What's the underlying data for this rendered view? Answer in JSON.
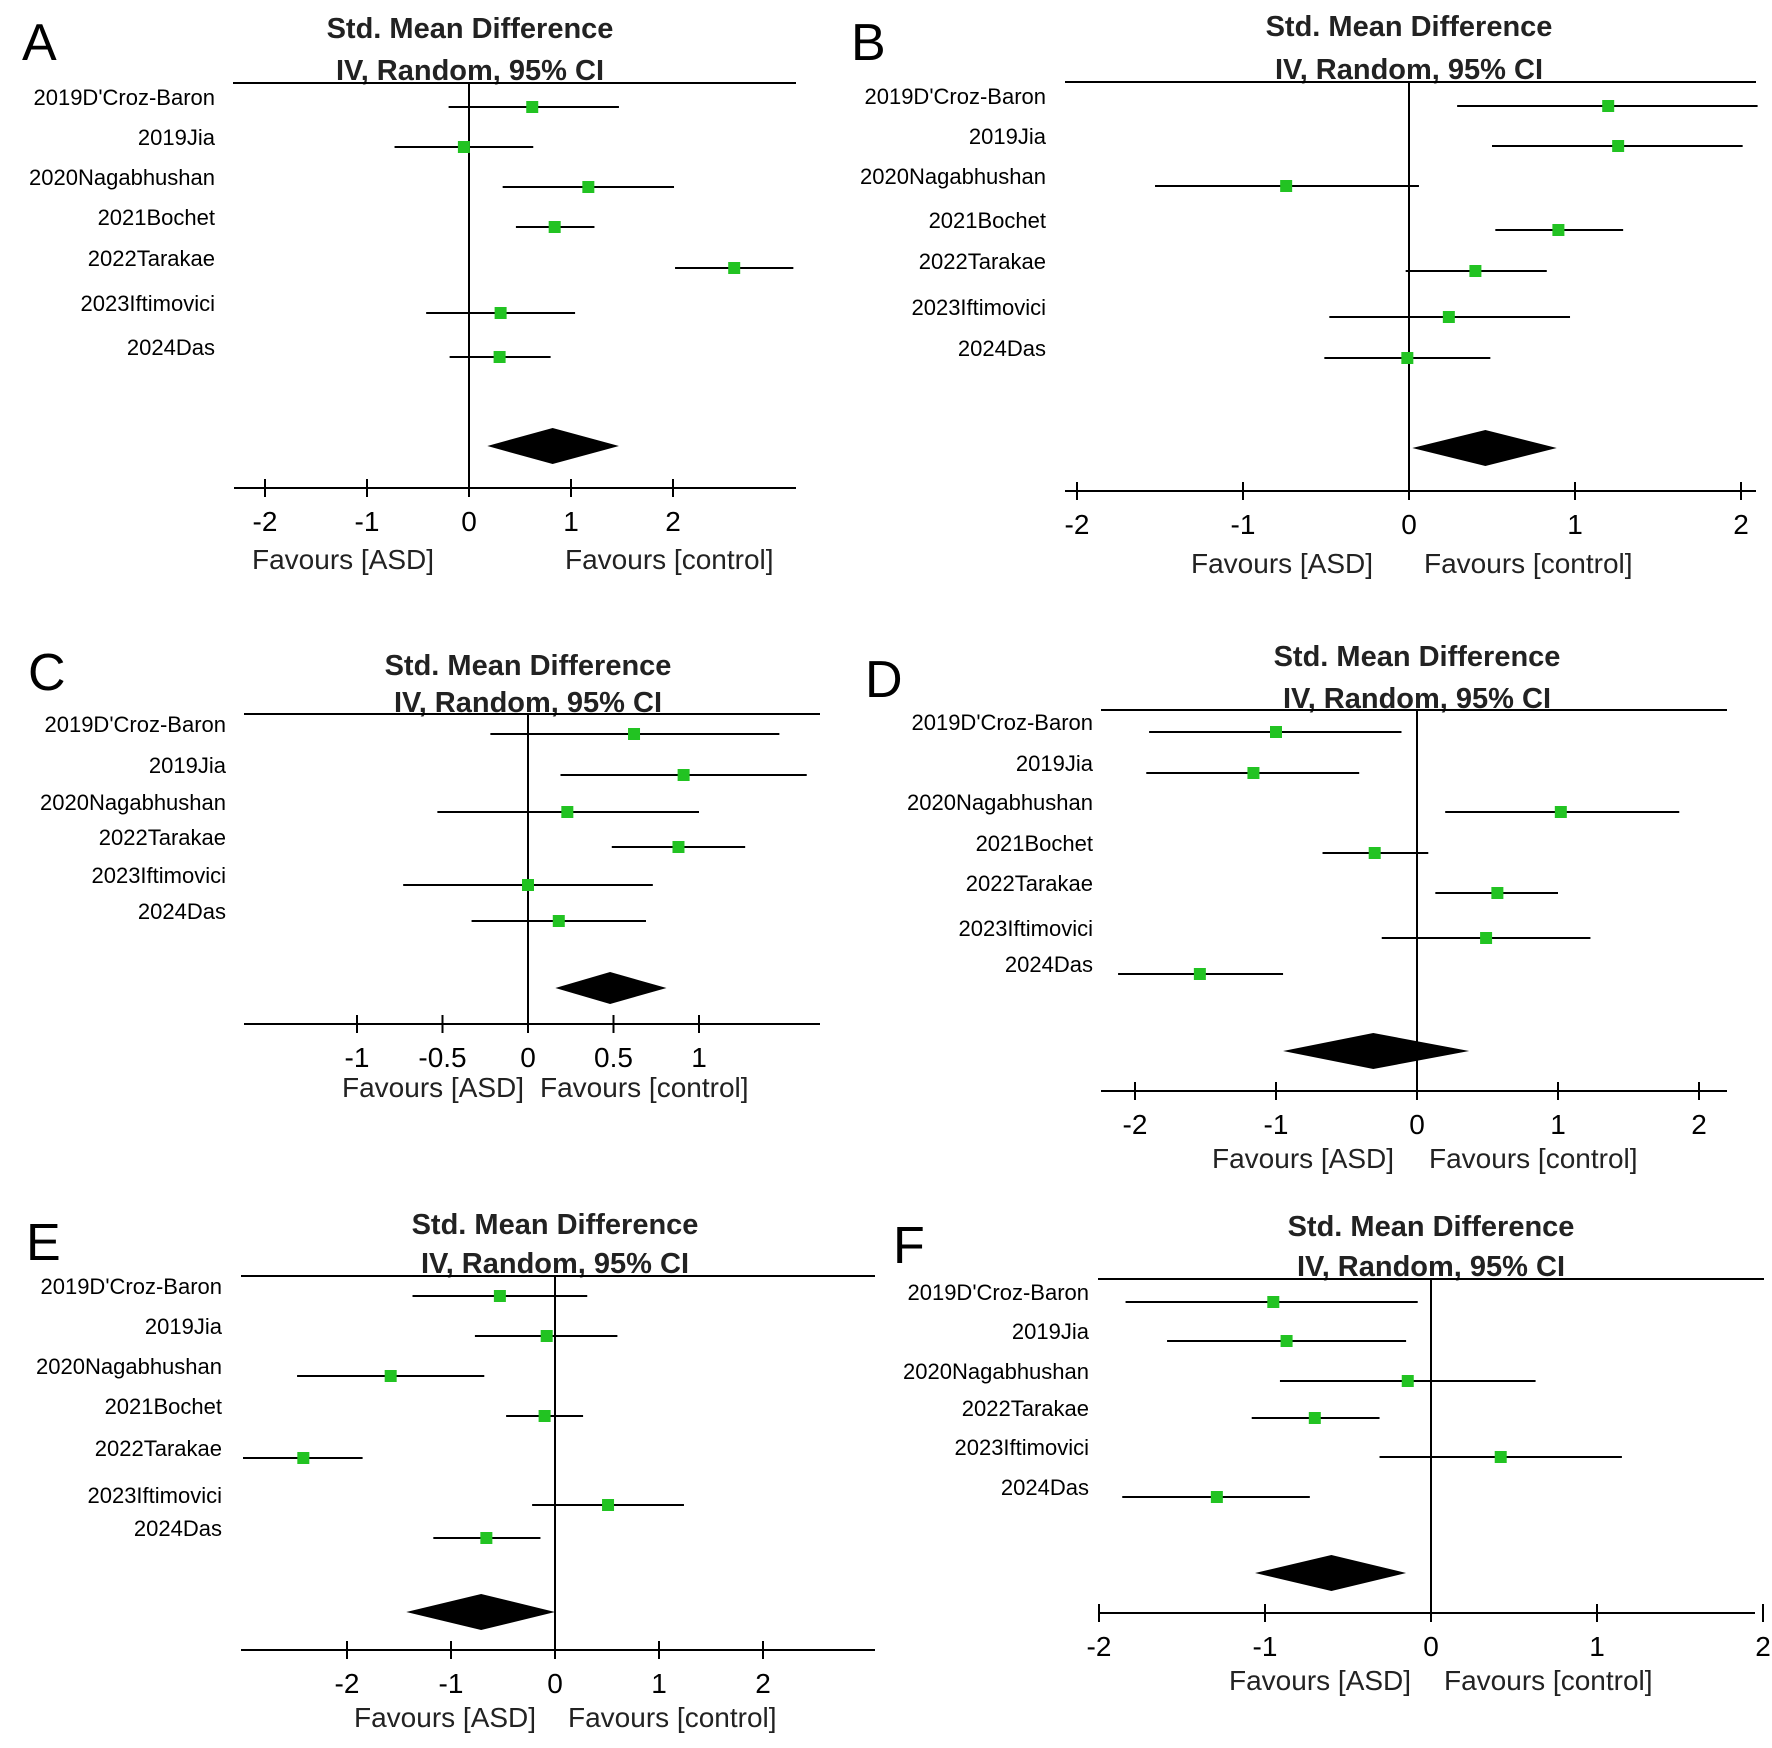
{
  "colors": {
    "marker": "#22c322",
    "line": "#000000",
    "text": "#000000"
  },
  "chart_data": [
    {
      "type": "forest",
      "panel": "A",
      "title": "Std. Mean Difference",
      "subtitle": "IV, Random, 95% CI",
      "xlim": [
        -2.3,
        3.2
      ],
      "xticks": [
        -2,
        -1,
        0,
        1,
        2
      ],
      "xtick_labels": [
        "-2",
        "-1",
        "0",
        "1",
        "2"
      ],
      "favours_left": "Favours [ASD]",
      "favours_right": "Favours [control]",
      "studies": [
        {
          "label": "2019D'Croz-Baron",
          "smd": 0.62,
          "lo": -0.2,
          "hi": 1.47
        },
        {
          "label": "2019Jia",
          "smd": -0.05,
          "lo": -0.73,
          "hi": 0.63
        },
        {
          "label": "2020Nagabhushan",
          "smd": 1.17,
          "lo": 0.33,
          "hi": 2.01
        },
        {
          "label": "2021Bochet",
          "smd": 0.84,
          "lo": 0.46,
          "hi": 1.23
        },
        {
          "label": "2022Tarakae",
          "smd": 2.6,
          "lo": 2.02,
          "hi": 3.18
        },
        {
          "label": "2023Iftimovici",
          "smd": 0.31,
          "lo": -0.42,
          "hi": 1.04
        },
        {
          "label": "2024Das",
          "smd": 0.3,
          "lo": -0.19,
          "hi": 0.8
        }
      ],
      "pooled": {
        "smd": 0.82,
        "lo": 0.18,
        "hi": 1.47
      }
    },
    {
      "type": "forest",
      "panel": "B",
      "title": "Std. Mean Difference",
      "subtitle": "IV, Random, 95% CI",
      "xlim": [
        -2.1,
        2.1
      ],
      "xticks": [
        -2,
        -1,
        0,
        1,
        2
      ],
      "xtick_labels": [
        "-2",
        "-1",
        "0",
        "1",
        "2"
      ],
      "favours_left": "Favours [ASD]",
      "favours_right": "Favours [control]",
      "studies": [
        {
          "label": "2019D'Croz-Baron",
          "smd": 1.2,
          "lo": 0.29,
          "hi": 2.1
        },
        {
          "label": "2019Jia",
          "smd": 1.26,
          "lo": 0.5,
          "hi": 2.01
        },
        {
          "label": "2020Nagabhushan",
          "smd": -0.74,
          "lo": -1.53,
          "hi": 0.06
        },
        {
          "label": "2021Bochet",
          "smd": 0.9,
          "lo": 0.52,
          "hi": 1.29
        },
        {
          "label": "2022Tarakae",
          "smd": 0.4,
          "lo": -0.02,
          "hi": 0.83
        },
        {
          "label": "2023Iftimovici",
          "smd": 0.24,
          "lo": -0.48,
          "hi": 0.97
        },
        {
          "label": "2024Das",
          "smd": -0.01,
          "lo": -0.51,
          "hi": 0.49
        }
      ],
      "pooled": {
        "smd": 0.46,
        "lo": 0.02,
        "hi": 0.89
      }
    },
    {
      "type": "forest",
      "panel": "C",
      "title": "Std. Mean Difference",
      "subtitle": "IV, Random, 95% CI",
      "xlim": [
        -1.68,
        1.7
      ],
      "xticks": [
        -1,
        -0.5,
        0,
        0.5,
        1
      ],
      "xtick_labels": [
        "-1",
        "-0.5",
        "0",
        "0.5",
        "1"
      ],
      "favours_left": "Favours [ASD]",
      "favours_right": "Favours [control]",
      "studies": [
        {
          "label": "2019D'Croz-Baron",
          "smd": 0.62,
          "lo": -0.22,
          "hi": 1.47
        },
        {
          "label": "2019Jia",
          "smd": 0.91,
          "lo": 0.19,
          "hi": 1.63
        },
        {
          "label": "2020Nagabhushan",
          "smd": 0.23,
          "lo": -0.53,
          "hi": 1.0
        },
        {
          "label": "2022Tarakae",
          "smd": 0.88,
          "lo": 0.49,
          "hi": 1.27
        },
        {
          "label": "2023Iftimovici",
          "smd": 0.0,
          "lo": -0.73,
          "hi": 0.73
        },
        {
          "label": "2024Das",
          "smd": 0.18,
          "lo": -0.33,
          "hi": 0.69
        }
      ],
      "pooled": {
        "smd": 0.48,
        "lo": 0.16,
        "hi": 0.81
      }
    },
    {
      "type": "forest",
      "panel": "D",
      "title": "Std. Mean Difference",
      "subtitle": "IV, Random, 95% CI",
      "xlim": [
        -2.23,
        2.23
      ],
      "xticks": [
        -2,
        -1,
        0,
        1,
        2
      ],
      "xtick_labels": [
        "-2",
        "-1",
        "0",
        "1",
        "2"
      ],
      "favours_left": "Favours [ASD]",
      "favours_right": "Favours [control]",
      "studies": [
        {
          "label": "2019D'Croz-Baron",
          "smd": -1.0,
          "lo": -1.9,
          "hi": -0.11
        },
        {
          "label": "2019Jia",
          "smd": -1.16,
          "lo": -1.92,
          "hi": -0.41
        },
        {
          "label": "2020Nagabhushan",
          "smd": 1.02,
          "lo": 0.2,
          "hi": 1.86
        },
        {
          "label": "2021Bochet",
          "smd": -0.3,
          "lo": -0.67,
          "hi": 0.08
        },
        {
          "label": "2022Tarakae",
          "smd": 0.57,
          "lo": 0.13,
          "hi": 1.0
        },
        {
          "label": "2023Iftimovici",
          "smd": 0.49,
          "lo": -0.25,
          "hi": 1.23
        },
        {
          "label": "2024Das",
          "smd": -1.54,
          "lo": -2.12,
          "hi": -0.95
        }
      ],
      "pooled": {
        "smd": -0.31,
        "lo": -0.95,
        "hi": 0.37
      }
    },
    {
      "type": "forest",
      "panel": "E",
      "title": "Std. Mean Difference",
      "subtitle": "IV, Random, 95% CI",
      "xlim": [
        -3.0,
        3.0
      ],
      "xticks": [
        -2,
        -1,
        0,
        1,
        2
      ],
      "xtick_labels": [
        "-2",
        "-1",
        "0",
        "1",
        "2"
      ],
      "favours_left": "Favours [ASD]",
      "favours_right": "Favours [control]",
      "studies": [
        {
          "label": "2019D'Croz-Baron",
          "smd": -0.53,
          "lo": -1.37,
          "hi": 0.31
        },
        {
          "label": "2019Jia",
          "smd": -0.08,
          "lo": -0.77,
          "hi": 0.6
        },
        {
          "label": "2020Nagabhushan",
          "smd": -1.58,
          "lo": -2.48,
          "hi": -0.68
        },
        {
          "label": "2021Bochet",
          "smd": -0.1,
          "lo": -0.47,
          "hi": 0.27
        },
        {
          "label": "2022Tarakae",
          "smd": -2.42,
          "lo": -3.0,
          "hi": -1.85
        },
        {
          "label": "2023Iftimovici",
          "smd": 0.51,
          "lo": -0.22,
          "hi": 1.24
        },
        {
          "label": "2024Das",
          "smd": -0.66,
          "lo": -1.17,
          "hi": -0.14
        }
      ],
      "pooled": {
        "smd": -0.71,
        "lo": -1.43,
        "hi": 0.0
      }
    },
    {
      "type": "forest",
      "panel": "F",
      "title": "Std. Mean Difference",
      "subtitle": "IV, Random, 95% CI",
      "xlim": [
        -2.0,
        2.0
      ],
      "xticks": [
        -2,
        -1,
        0,
        1,
        2
      ],
      "xtick_labels": [
        "-2",
        "-1",
        "0",
        "1",
        "2"
      ],
      "favours_left": "Favours [ASD]",
      "favours_right": "Favours [control]",
      "studies": [
        {
          "label": "2019D'Croz-Baron",
          "smd": -0.95,
          "lo": -1.84,
          "hi": -0.08
        },
        {
          "label": "2019Jia",
          "smd": -0.87,
          "lo": -1.59,
          "hi": -0.15
        },
        {
          "label": "2020Nagabhushan",
          "smd": -0.14,
          "lo": -0.91,
          "hi": 0.63
        },
        {
          "label": "2022Tarakae",
          "smd": -0.7,
          "lo": -1.08,
          "hi": -0.31
        },
        {
          "label": "2023Iftimovici",
          "smd": 0.42,
          "lo": -0.31,
          "hi": 1.15
        },
        {
          "label": "2024Das",
          "smd": -1.29,
          "lo": -1.86,
          "hi": -0.73
        }
      ],
      "pooled": {
        "smd": -0.6,
        "lo": -1.06,
        "hi": -0.15
      }
    }
  ]
}
